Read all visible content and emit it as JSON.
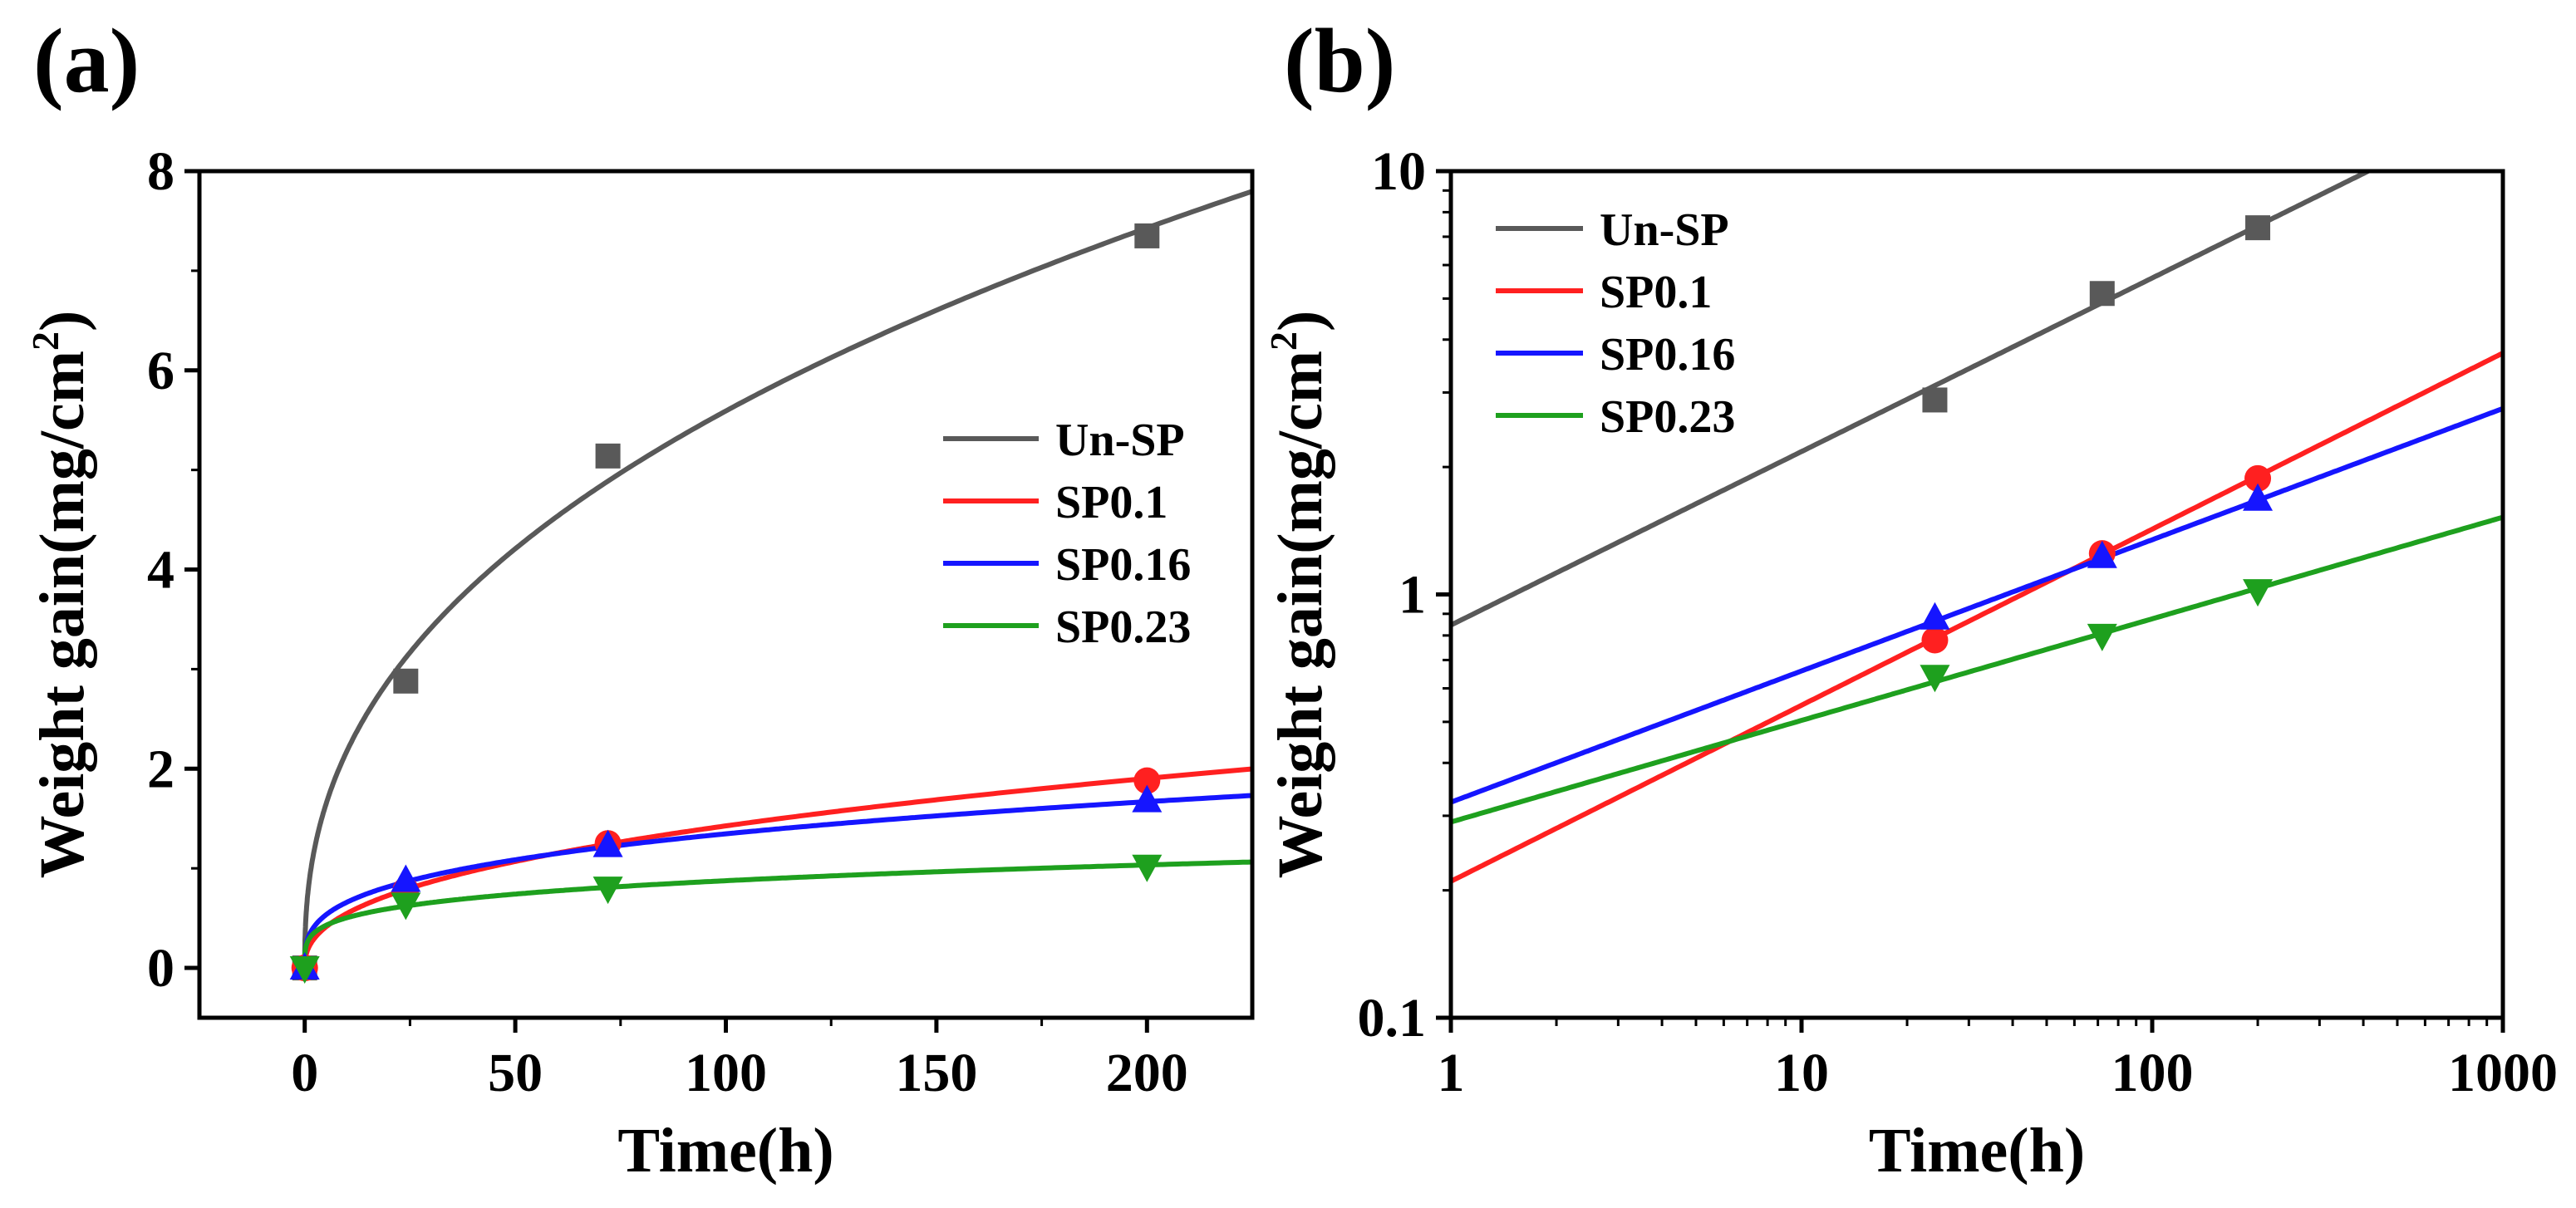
{
  "chart_data": [
    {
      "panel_label": "(a)",
      "type": "scatter",
      "xlabel": "Time(h)",
      "ylabel_main": "Weight gain(mg/cm",
      "ylabel_sup": "2",
      "ylabel_close": ")",
      "x_scale": "linear",
      "y_scale": "linear",
      "xlim": [
        -25,
        225
      ],
      "ylim": [
        -0.5,
        8
      ],
      "x_ticks": [
        0,
        50,
        100,
        150,
        200
      ],
      "x_tick_labels": [
        "0",
        "50",
        "100",
        "150",
        "200"
      ],
      "y_ticks": [
        0,
        2,
        4,
        6,
        8
      ],
      "y_tick_labels": [
        "0",
        "2",
        "4",
        "6",
        "8"
      ],
      "legend_position": "center-right",
      "series": [
        {
          "name": "Un-SP",
          "color": "#595959",
          "marker": "square",
          "x": [
            0,
            24,
            72,
            200
          ],
          "y": [
            0,
            2.88,
            5.14,
            7.35
          ],
          "fit": {
            "form": "power",
            "a": 0.8464,
            "n": 0.41
          }
        },
        {
          "name": "SP0.1",
          "color": "#ff2020",
          "marker": "circle",
          "x": [
            0,
            24,
            72,
            200
          ],
          "y": [
            0,
            0.78,
            1.25,
            1.88
          ],
          "fit": {
            "form": "power",
            "a": 0.21,
            "n": 0.416
          }
        },
        {
          "name": "SP0.16",
          "color": "#1515ff",
          "marker": "triangle-up",
          "x": [
            0,
            24,
            72,
            200
          ],
          "y": [
            0,
            0.88,
            1.23,
            1.68
          ],
          "fit": {
            "form": "power",
            "a": 0.323,
            "n": 0.31
          }
        },
        {
          "name": "SP0.23",
          "color": "#1ea01e",
          "marker": "triangle-down",
          "x": [
            0,
            24,
            72,
            200
          ],
          "y": [
            0,
            0.64,
            0.8,
            1.02
          ],
          "fit": {
            "form": "power",
            "a": 0.29,
            "n": 0.24
          }
        }
      ]
    },
    {
      "panel_label": "(b)",
      "type": "scatter",
      "xlabel": "Time(h)",
      "ylabel_main": "Weight gain(mg/cm",
      "ylabel_sup": "2",
      "ylabel_close": ")",
      "x_scale": "log",
      "y_scale": "log",
      "xlim": [
        1,
        1000
      ],
      "ylim": [
        0.1,
        10
      ],
      "x_ticks": [
        1,
        10,
        100,
        1000
      ],
      "x_tick_labels": [
        "1",
        "10",
        "100",
        "1000"
      ],
      "y_ticks": [
        0.1,
        1,
        10
      ],
      "y_tick_labels": [
        "0.1",
        "1",
        "10"
      ],
      "legend_position": "top-left",
      "series": [
        {
          "name": "Un-SP",
          "color": "#595959",
          "marker": "square",
          "x": [
            24,
            72,
            200
          ],
          "y": [
            2.88,
            5.14,
            7.35
          ],
          "fit": {
            "form": "power",
            "a": 0.8464,
            "n": 0.41
          }
        },
        {
          "name": "SP0.1",
          "color": "#ff2020",
          "marker": "circle",
          "x": [
            24,
            72,
            200
          ],
          "y": [
            0.78,
            1.25,
            1.88
          ],
          "fit": {
            "form": "power",
            "a": 0.21,
            "n": 0.416
          }
        },
        {
          "name": "SP0.16",
          "color": "#1515ff",
          "marker": "triangle-up",
          "x": [
            24,
            72,
            200
          ],
          "y": [
            0.88,
            1.23,
            1.68
          ],
          "fit": {
            "form": "power",
            "a": 0.323,
            "n": 0.31
          }
        },
        {
          "name": "SP0.23",
          "color": "#1ea01e",
          "marker": "triangle-down",
          "x": [
            24,
            72,
            200
          ],
          "y": [
            0.64,
            0.8,
            1.02
          ],
          "fit": {
            "form": "power",
            "a": 0.29,
            "n": 0.24
          }
        }
      ]
    }
  ]
}
